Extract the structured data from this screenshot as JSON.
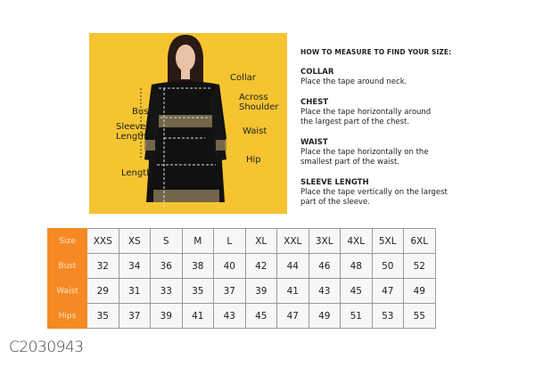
{
  "image_labels": {
    "collar": "Collar",
    "across_shoulder": "Across Shoulder",
    "bust": "Bust",
    "sleeve_length": "Sleeve Length",
    "waist": "Waist",
    "hip": "Hip",
    "length": "Length"
  },
  "guide": {
    "title": "HOW TO MEASURE TO FIND YOUR SIZE:",
    "sections": [
      {
        "title": "COLLAR",
        "desc": "Place the tape around neck."
      },
      {
        "title": "CHEST",
        "desc": "Place the tape horizontally around the largest part of the chest."
      },
      {
        "title": "WAIST",
        "desc": "Place the tape horizontally on the smallest part of the waist."
      },
      {
        "title": "SLEEVE LENGTH",
        "desc": "Place the tape vertically on the largest part of the sleeve."
      }
    ]
  },
  "table": {
    "rows": [
      {
        "label": "Size",
        "values": [
          "XXS",
          "XS",
          "S",
          "M",
          "L",
          "XL",
          "XXL",
          "3XL",
          "4XL",
          "5XL",
          "6XL"
        ]
      },
      {
        "label": "Bust",
        "values": [
          "32",
          "34",
          "36",
          "38",
          "40",
          "42",
          "44",
          "46",
          "48",
          "50",
          "52"
        ]
      },
      {
        "label": "Waist",
        "values": [
          "29",
          "31",
          "33",
          "35",
          "37",
          "39",
          "41",
          "43",
          "45",
          "47",
          "49"
        ]
      },
      {
        "label": "Hips",
        "values": [
          "35",
          "37",
          "39",
          "41",
          "43",
          "45",
          "47",
          "49",
          "51",
          "53",
          "55"
        ]
      }
    ]
  },
  "product_code": "C2030943",
  "colors": {
    "header": "#f58a24",
    "photo_bg": "#f5c430"
  }
}
